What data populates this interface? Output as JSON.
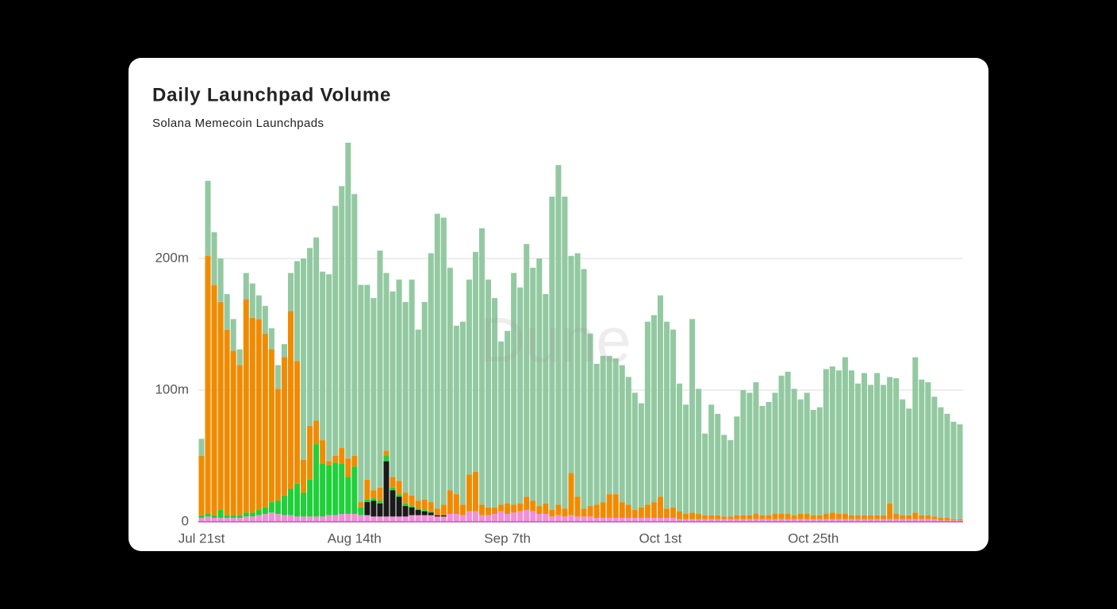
{
  "chart_data": {
    "type": "bar",
    "stacked": true,
    "title": "Daily Launchpad Volume",
    "subtitle": "Solana Memecoin Launchpads",
    "watermark": "Dune",
    "categories": [
      "Jul 21st",
      null,
      null,
      null,
      null,
      null,
      null,
      null,
      null,
      null,
      null,
      null,
      null,
      null,
      null,
      null,
      null,
      null,
      null,
      null,
      null,
      null,
      null,
      null,
      "Aug 14th",
      null,
      null,
      null,
      null,
      null,
      null,
      null,
      null,
      null,
      null,
      null,
      null,
      null,
      null,
      null,
      null,
      null,
      null,
      null,
      null,
      null,
      null,
      null,
      "Sep 7th",
      null,
      null,
      null,
      null,
      null,
      null,
      null,
      null,
      null,
      null,
      null,
      null,
      null,
      null,
      null,
      null,
      null,
      null,
      null,
      null,
      null,
      null,
      null,
      "Oct 1st",
      null,
      null,
      null,
      null,
      null,
      null,
      null,
      null,
      null,
      null,
      null,
      null,
      null,
      null,
      null,
      null,
      null,
      null,
      null,
      null,
      null,
      null,
      null,
      "Oct 25th",
      null,
      null,
      null,
      null,
      null,
      null,
      null,
      null,
      null,
      null,
      null,
      null,
      null,
      null,
      null,
      null,
      null,
      null,
      null,
      null,
      null,
      null,
      null
    ],
    "series": [
      {
        "color": "#f290d6",
        "values": [
          3,
          4,
          3,
          3,
          3,
          3,
          3,
          4,
          4,
          5,
          6,
          7,
          6,
          5,
          5,
          4,
          4,
          4,
          4,
          4,
          5,
          5,
          6,
          6,
          6,
          5,
          5,
          4,
          4,
          4,
          4,
          4,
          4,
          5,
          5,
          5,
          5,
          4,
          4,
          6,
          6,
          5,
          8,
          8,
          5,
          5,
          6,
          8,
          6,
          7,
          8,
          9,
          8,
          6,
          6,
          4,
          5,
          4,
          5,
          4,
          4,
          4,
          3,
          3,
          3,
          3,
          3,
          3,
          3,
          3,
          3,
          3,
          3,
          3,
          3,
          2,
          2,
          2,
          2,
          2,
          2,
          2,
          2,
          2,
          2,
          2,
          2,
          2,
          2,
          2,
          2,
          2,
          2,
          2,
          2,
          2,
          2,
          2,
          2,
          2,
          2,
          2,
          2,
          2,
          2,
          2,
          2,
          2,
          2,
          2,
          2,
          2,
          2,
          2,
          2,
          2,
          1,
          1,
          1,
          1
        ]
      },
      {
        "color": "#1a1a1a",
        "values": [
          0,
          0,
          0,
          0,
          0,
          0,
          0,
          0,
          0,
          0,
          0,
          0,
          0,
          0,
          0,
          0,
          0,
          0,
          0,
          0,
          0,
          0,
          0,
          0,
          0,
          0,
          10,
          12,
          10,
          42,
          20,
          15,
          8,
          6,
          4,
          3,
          2,
          1,
          1,
          0,
          0,
          0,
          0,
          0,
          0,
          0,
          0,
          0,
          0,
          0,
          0,
          0,
          0,
          0,
          0,
          0,
          0,
          0,
          0,
          0,
          0,
          0,
          0,
          0,
          0,
          0,
          0,
          0,
          0,
          0,
          0,
          0,
          0,
          0,
          0,
          0,
          0,
          0,
          0,
          0,
          0,
          0,
          0,
          0,
          0,
          0,
          0,
          0,
          0,
          0,
          0,
          0,
          0,
          0,
          0,
          0,
          0,
          0,
          0,
          0,
          0,
          0,
          0,
          0,
          0,
          0,
          0,
          0,
          0,
          0,
          0,
          0,
          0,
          0,
          0,
          0,
          0,
          0,
          0,
          0
        ]
      },
      {
        "color": "#1fd03a",
        "values": [
          2,
          2,
          2,
          6,
          2,
          2,
          2,
          3,
          3,
          4,
          5,
          8,
          10,
          15,
          20,
          25,
          18,
          28,
          55,
          40,
          38,
          40,
          38,
          28,
          36,
          6,
          2,
          2,
          2,
          4,
          2,
          2,
          2,
          1,
          1,
          1,
          1,
          0,
          0,
          0,
          0,
          0,
          0,
          0,
          0,
          0,
          0,
          0,
          0,
          0,
          0,
          0,
          0,
          0,
          0,
          0,
          0,
          0,
          0,
          0,
          0,
          0,
          0,
          0,
          0,
          0,
          0,
          0,
          0,
          0,
          0,
          0,
          0,
          0,
          0,
          0,
          0,
          0,
          0,
          0,
          0,
          0,
          0,
          0,
          0,
          0,
          0,
          0,
          0,
          0,
          0,
          0,
          0,
          0,
          0,
          0,
          0,
          0,
          0,
          0,
          0,
          0,
          0,
          0,
          0,
          0,
          0,
          0,
          0,
          0,
          0,
          0,
          0,
          0,
          0,
          0,
          0,
          0,
          0,
          0
        ]
      },
      {
        "color": "#f08b00",
        "values": [
          45,
          196,
          175,
          158,
          141,
          125,
          114,
          162,
          148,
          145,
          132,
          116,
          85,
          105,
          135,
          93,
          25,
          41,
          18,
          18,
          3,
          5,
          12,
          14,
          8,
          4,
          15,
          6,
          10,
          4,
          8,
          10,
          8,
          8,
          6,
          8,
          7,
          5,
          8,
          18,
          15,
          8,
          28,
          30,
          8,
          6,
          5,
          5,
          8,
          6,
          6,
          10,
          8,
          6,
          8,
          5,
          8,
          6,
          32,
          15,
          6,
          8,
          10,
          12,
          18,
          18,
          12,
          10,
          6,
          8,
          10,
          12,
          16,
          7,
          8,
          6,
          4,
          5,
          4,
          3,
          3,
          3,
          2,
          2,
          3,
          3,
          3,
          4,
          3,
          3,
          4,
          4,
          4,
          3,
          4,
          4,
          3,
          3,
          4,
          5,
          4,
          4,
          3,
          3,
          3,
          3,
          3,
          3,
          12,
          4,
          3,
          3,
          5,
          3,
          3,
          2,
          2,
          2,
          1,
          1
        ]
      },
      {
        "color": "#93c9a1",
        "values": [
          13,
          57,
          40,
          33,
          27,
          24,
          12,
          20,
          26,
          18,
          21,
          16,
          18,
          10,
          29,
          76,
          153,
          135,
          139,
          128,
          142,
          190,
          199,
          240,
          199,
          165,
          148,
          146,
          180,
          135,
          141,
          153,
          145,
          164,
          130,
          150,
          189,
          224,
          218,
          169,
          128,
          139,
          148,
          167,
          210,
          173,
          159,
          124,
          131,
          176,
          164,
          192,
          177,
          188,
          159,
          238,
          258,
          237,
          165,
          185,
          182,
          131,
          107,
          111,
          105,
          103,
          104,
          97,
          89,
          79,
          139,
          142,
          153,
          142,
          135,
          97,
          83,
          147,
          95,
          62,
          84,
          77,
          62,
          58,
          75,
          95,
          93,
          100,
          83,
          86,
          92,
          105,
          108,
          96,
          87,
          92,
          80,
          82,
          110,
          111,
          109,
          119,
          110,
          100,
          108,
          99,
          108,
          99,
          96,
          103,
          88,
          81,
          118,
          103,
          101,
          91,
          84,
          79,
          74,
          72
        ]
      }
    ],
    "ylim": [
      0,
      290
    ],
    "yticks": [
      0,
      {
        "value": 100,
        "label": "100m"
      },
      {
        "value": 200,
        "label": "200m"
      }
    ],
    "grid": true
  }
}
